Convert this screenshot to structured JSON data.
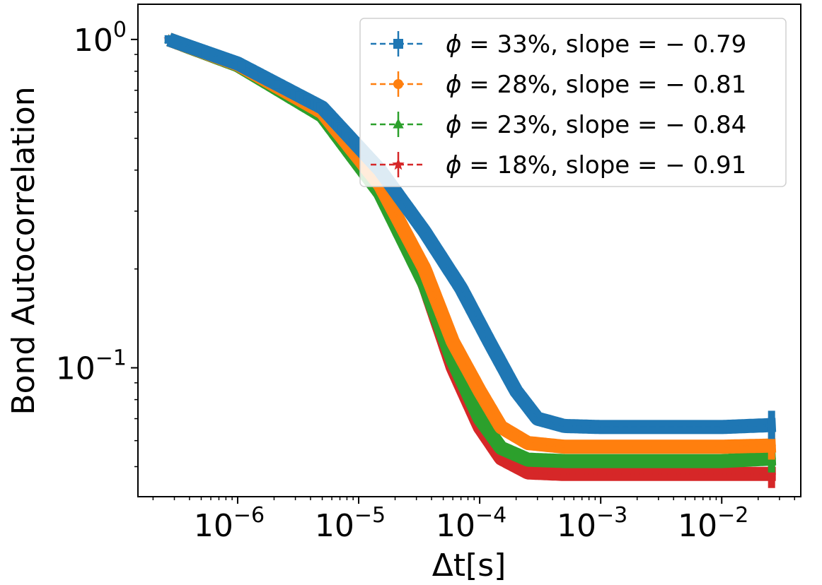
{
  "chart_data": {
    "type": "line",
    "xscale": "log",
    "yscale": "log",
    "xlabel": "Δt[s]",
    "ylabel": "Bond Autocorrelation",
    "xlim": [
      1.5e-07,
      0.045
    ],
    "ylim": [
      0.0405,
      1.28
    ],
    "xticks": [
      {
        "value": 1e-06,
        "base": "10",
        "exp": "−6"
      },
      {
        "value": 1e-05,
        "base": "10",
        "exp": "−5"
      },
      {
        "value": 0.0001,
        "base": "10",
        "exp": "−4"
      },
      {
        "value": 0.001,
        "base": "10",
        "exp": "−3"
      },
      {
        "value": 0.01,
        "base": "10",
        "exp": "−2"
      }
    ],
    "yticks": [
      {
        "value": 1,
        "base": "10",
        "exp": "0"
      },
      {
        "value": 0.1,
        "base": "10",
        "exp": "−1"
      }
    ],
    "legend_position": "top-right",
    "series": [
      {
        "phi": "33%",
        "slope": "− 0.79",
        "color": "#1f77b4",
        "marker": "square",
        "points": [
          [
            2.7e-07,
            1.0
          ],
          [
            1e-06,
            0.845
          ],
          [
            5e-06,
            0.62
          ],
          [
            1.5e-05,
            0.4
          ],
          [
            3.5e-05,
            0.26
          ],
          [
            7e-05,
            0.175
          ],
          [
            0.00012,
            0.12
          ],
          [
            0.0002,
            0.085
          ],
          [
            0.0003,
            0.07
          ],
          [
            0.0005,
            0.0665
          ],
          [
            0.001,
            0.066
          ],
          [
            0.01,
            0.066
          ],
          [
            0.028,
            0.067
          ]
        ]
      },
      {
        "phi": "28%",
        "slope": "− 0.81",
        "color": "#ff7f0e",
        "marker": "circle",
        "points": [
          [
            2.7e-07,
            1.0
          ],
          [
            1e-06,
            0.84
          ],
          [
            5e-06,
            0.6
          ],
          [
            1.5e-05,
            0.36
          ],
          [
            3.5e-05,
            0.2
          ],
          [
            6e-05,
            0.12
          ],
          [
            0.0001,
            0.085
          ],
          [
            0.00015,
            0.066
          ],
          [
            0.00025,
            0.059
          ],
          [
            0.0005,
            0.0575
          ],
          [
            0.001,
            0.0575
          ],
          [
            0.01,
            0.0575
          ],
          [
            0.028,
            0.058
          ]
        ]
      },
      {
        "phi": "23%",
        "slope": "− 0.84",
        "color": "#2ca02c",
        "marker": "triangle",
        "points": [
          [
            2.7e-07,
            1.0
          ],
          [
            1e-06,
            0.835
          ],
          [
            5e-06,
            0.585
          ],
          [
            1.5e-05,
            0.34
          ],
          [
            3.5e-05,
            0.18
          ],
          [
            6e-05,
            0.105
          ],
          [
            0.0001,
            0.07
          ],
          [
            0.00015,
            0.057
          ],
          [
            0.00025,
            0.0525
          ],
          [
            0.0005,
            0.052
          ],
          [
            0.001,
            0.052
          ],
          [
            0.01,
            0.052
          ],
          [
            0.028,
            0.053
          ]
        ]
      },
      {
        "phi": "18%",
        "slope": "− 0.91",
        "color": "#d62728",
        "marker": "star",
        "points": [
          [
            2.7e-07,
            1.0
          ],
          [
            1e-06,
            0.835
          ],
          [
            5e-06,
            0.59
          ],
          [
            1.5e-05,
            0.345
          ],
          [
            3.5e-05,
            0.18
          ],
          [
            6e-05,
            0.1
          ],
          [
            0.0001,
            0.066
          ],
          [
            0.00015,
            0.053
          ],
          [
            0.00025,
            0.048
          ],
          [
            0.0005,
            0.0475
          ],
          [
            0.001,
            0.0475
          ],
          [
            0.01,
            0.0475
          ],
          [
            0.028,
            0.0475
          ]
        ]
      }
    ]
  }
}
